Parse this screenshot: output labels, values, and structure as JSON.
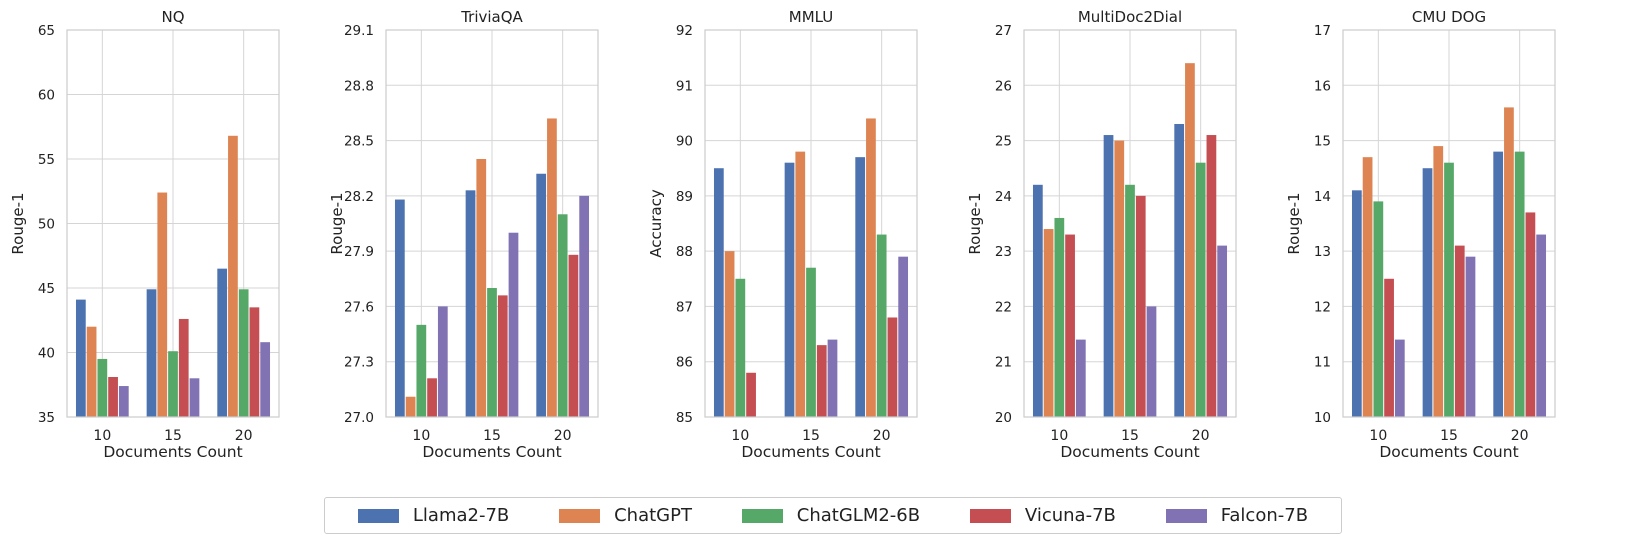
{
  "legend": {
    "items": [
      {
        "label": "Llama2-7B",
        "color": "#4c72b0"
      },
      {
        "label": "ChatGPT",
        "color": "#dd8452"
      },
      {
        "label": "ChatGLM2-6B",
        "color": "#55a868"
      },
      {
        "label": "Vicuna-7B",
        "color": "#c44e52"
      },
      {
        "label": "Falcon-7B",
        "color": "#8172b3"
      }
    ]
  },
  "chart_data": [
    {
      "type": "bar",
      "title": "NQ",
      "xlabel": "Documents Count",
      "ylabel": "Rouge-1",
      "categories": [
        "10",
        "15",
        "20"
      ],
      "ylim": [
        35,
        65
      ],
      "yticks": [
        "35",
        "40",
        "45",
        "50",
        "55",
        "60",
        "65"
      ],
      "grid": true,
      "series": [
        {
          "name": "Llama2-7B",
          "values": [
            44.1,
            44.9,
            46.5
          ]
        },
        {
          "name": "ChatGPT",
          "values": [
            42.0,
            52.4,
            56.8
          ]
        },
        {
          "name": "ChatGLM2-6B",
          "values": [
            39.5,
            40.1,
            44.9
          ]
        },
        {
          "name": "Vicuna-7B",
          "values": [
            38.1,
            42.6,
            43.5
          ]
        },
        {
          "name": "Falcon-7B",
          "values": [
            37.4,
            38.0,
            40.8
          ]
        }
      ]
    },
    {
      "type": "bar",
      "title": "TriviaQA",
      "xlabel": "Documents Count",
      "ylabel": "Rouge-1",
      "categories": [
        "10",
        "15",
        "20"
      ],
      "ylim": [
        27.0,
        29.1
      ],
      "yticks": [
        "27.0",
        "27.3",
        "27.6",
        "27.9",
        "28.2",
        "28.5",
        "28.8",
        "29.1"
      ],
      "grid": true,
      "series": [
        {
          "name": "Llama2-7B",
          "values": [
            28.18,
            28.23,
            28.32
          ]
        },
        {
          "name": "ChatGPT",
          "values": [
            27.11,
            28.4,
            28.62
          ]
        },
        {
          "name": "ChatGLM2-6B",
          "values": [
            27.5,
            27.7,
            28.1
          ]
        },
        {
          "name": "Vicuna-7B",
          "values": [
            27.21,
            27.66,
            27.88
          ]
        },
        {
          "name": "Falcon-7B",
          "values": [
            27.6,
            28.0,
            28.2
          ]
        }
      ]
    },
    {
      "type": "bar",
      "title": "MMLU",
      "xlabel": "Documents Count",
      "ylabel": "Accuracy",
      "categories": [
        "10",
        "15",
        "20"
      ],
      "ylim": [
        85,
        92
      ],
      "yticks": [
        "85",
        "86",
        "87",
        "88",
        "89",
        "90",
        "91",
        "92"
      ],
      "grid": true,
      "series": [
        {
          "name": "Llama2-7B",
          "values": [
            89.5,
            89.6,
            89.7
          ]
        },
        {
          "name": "ChatGPT",
          "values": [
            88.0,
            89.8,
            90.4
          ]
        },
        {
          "name": "ChatGLM2-6B",
          "values": [
            87.5,
            87.7,
            88.3
          ]
        },
        {
          "name": "Vicuna-7B",
          "values": [
            85.8,
            86.3,
            86.8
          ]
        },
        {
          "name": "Falcon-7B",
          "values": [
            85.0,
            86.4,
            87.9
          ]
        }
      ]
    },
    {
      "type": "bar",
      "title": "MultiDoc2Dial",
      "xlabel": "Documents Count",
      "ylabel": "Rouge-1",
      "categories": [
        "10",
        "15",
        "20"
      ],
      "ylim": [
        20,
        27
      ],
      "yticks": [
        "20",
        "21",
        "22",
        "23",
        "24",
        "25",
        "26",
        "27"
      ],
      "grid": true,
      "series": [
        {
          "name": "Llama2-7B",
          "values": [
            24.2,
            25.1,
            25.3
          ]
        },
        {
          "name": "ChatGPT",
          "values": [
            23.4,
            25.0,
            26.4
          ]
        },
        {
          "name": "ChatGLM2-6B",
          "values": [
            23.6,
            24.2,
            24.6
          ]
        },
        {
          "name": "Vicuna-7B",
          "values": [
            23.3,
            24.0,
            25.1
          ]
        },
        {
          "name": "Falcon-7B",
          "values": [
            21.4,
            22.0,
            23.1
          ]
        }
      ]
    },
    {
      "type": "bar",
      "title": "CMU DOG",
      "xlabel": "Documents Count",
      "ylabel": "Rouge-1",
      "categories": [
        "10",
        "15",
        "20"
      ],
      "ylim": [
        10,
        17
      ],
      "yticks": [
        "10",
        "11",
        "12",
        "13",
        "14",
        "15",
        "16",
        "17"
      ],
      "grid": true,
      "series": [
        {
          "name": "Llama2-7B",
          "values": [
            14.1,
            14.5,
            14.8
          ]
        },
        {
          "name": "ChatGPT",
          "values": [
            14.7,
            14.9,
            15.6
          ]
        },
        {
          "name": "ChatGLM2-6B",
          "values": [
            13.9,
            14.6,
            14.8
          ]
        },
        {
          "name": "Vicuna-7B",
          "values": [
            12.5,
            13.1,
            13.7
          ]
        },
        {
          "name": "Falcon-7B",
          "values": [
            11.4,
            12.9,
            13.3
          ]
        }
      ]
    }
  ]
}
